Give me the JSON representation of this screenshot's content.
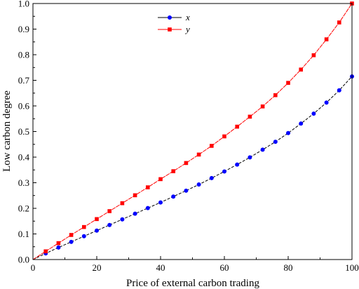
{
  "chart_data": {
    "type": "line",
    "xlabel": "Price of external carbon trading",
    "ylabel": "Low carbon degree",
    "xlim": [
      0,
      100
    ],
    "ylim": [
      0,
      1.0
    ],
    "x_ticks": [
      "0",
      "20",
      "40",
      "60",
      "80",
      "100"
    ],
    "y_ticks": [
      "0.0",
      "0.1",
      "0.2",
      "0.3",
      "0.4",
      "0.5",
      "0.6",
      "0.7",
      "0.8",
      "0.9",
      "1.0"
    ],
    "grid": false,
    "legend_position": "top-center",
    "x": [
      0,
      4,
      8,
      12,
      16,
      20,
      24,
      28,
      32,
      36,
      40,
      44,
      48,
      52,
      56,
      60,
      64,
      68,
      72,
      76,
      80,
      84,
      88,
      92,
      96,
      100
    ],
    "series": [
      {
        "name": "x",
        "color": "#0000ff",
        "line_color": "#000000",
        "marker": "circle",
        "values": [
          0.0,
          0.024,
          0.047,
          0.069,
          0.091,
          0.113,
          0.135,
          0.157,
          0.179,
          0.201,
          0.223,
          0.246,
          0.269,
          0.293,
          0.318,
          0.344,
          0.371,
          0.399,
          0.429,
          0.46,
          0.494,
          0.531,
          0.57,
          0.613,
          0.661,
          0.715
        ]
      },
      {
        "name": "y",
        "color": "#ff0000",
        "line_color": "#ff0000",
        "marker": "square",
        "values": [
          0.0,
          0.032,
          0.064,
          0.096,
          0.127,
          0.158,
          0.189,
          0.22,
          0.251,
          0.282,
          0.314,
          0.345,
          0.377,
          0.41,
          0.444,
          0.481,
          0.519,
          0.558,
          0.598,
          0.642,
          0.69,
          0.742,
          0.798,
          0.86,
          0.926,
          1.0
        ]
      }
    ]
  }
}
